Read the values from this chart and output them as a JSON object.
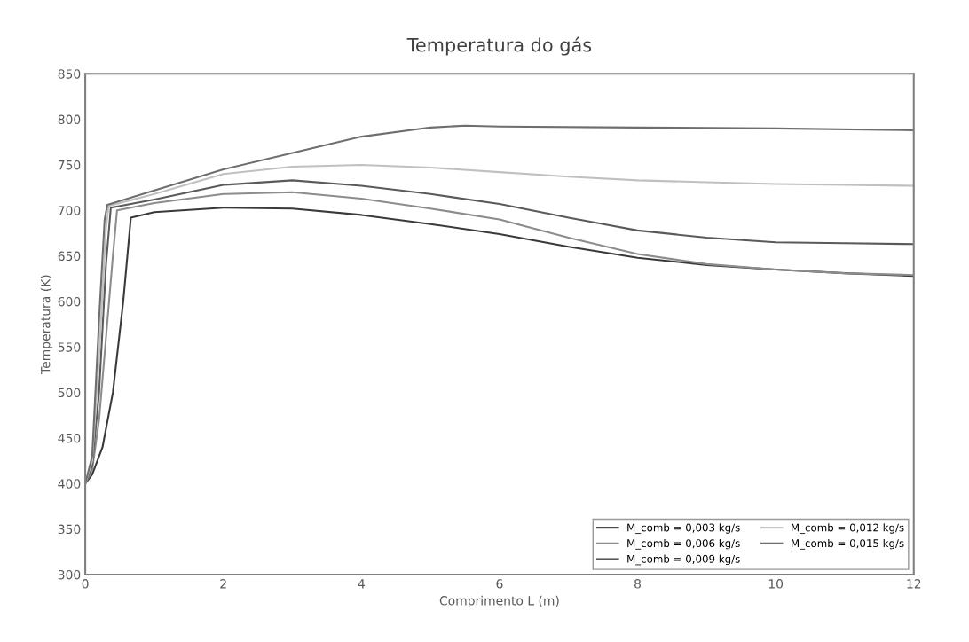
{
  "chart_data": {
    "type": "line",
    "title": "Temperatura do gás",
    "xlabel": "Comprimento L (m)",
    "ylabel": "Temperatura (K)",
    "xlim": [
      0,
      12
    ],
    "xticks": [
      0,
      2,
      4,
      6,
      8,
      10,
      12
    ],
    "ylim": [
      300,
      850
    ],
    "yticks": [
      300,
      350,
      400,
      450,
      500,
      550,
      600,
      650,
      700,
      750,
      800,
      850
    ],
    "grid": false,
    "legend": "bottom right",
    "marker": "none",
    "line_style": "solid",
    "series": [
      {
        "name": "M_comb = 0,003 kg/s",
        "color": "#3a3a3a",
        "x": [
          0,
          0.1,
          0.25,
          0.4,
          0.55,
          0.66,
          1,
          2,
          3,
          4,
          5,
          6,
          7,
          8,
          9,
          10,
          11,
          12
        ],
        "values": [
          400,
          410,
          440,
          500,
          600,
          692,
          698,
          703,
          702,
          695,
          685,
          674,
          660,
          648,
          640,
          635,
          631,
          628
        ]
      },
      {
        "name": "M_comb = 0,006 kg/s",
        "color": "#8c8c8c",
        "x": [
          0,
          0.1,
          0.2,
          0.3,
          0.4,
          0.46,
          1,
          2,
          3,
          4,
          5,
          6,
          7,
          8,
          9,
          10,
          11,
          12
        ],
        "values": [
          400,
          415,
          470,
          560,
          650,
          700,
          708,
          718,
          720,
          713,
          702,
          690,
          670,
          652,
          641,
          635,
          631,
          629
        ]
      },
      {
        "name": "M_comb = 0,009 kg/s",
        "color": "#5a5a5a",
        "x": [
          0,
          0.1,
          0.2,
          0.3,
          0.37,
          1,
          2,
          3,
          4,
          5,
          6,
          7,
          8,
          9,
          10,
          11,
          12
        ],
        "values": [
          400,
          420,
          500,
          640,
          703,
          712,
          728,
          733,
          727,
          718,
          707,
          692,
          678,
          670,
          665,
          664,
          663
        ]
      },
      {
        "name": "M_comb = 0,012 kg/s",
        "color": "#c0c0c0",
        "x": [
          0,
          0.1,
          0.2,
          0.3,
          0.34,
          1,
          2,
          3,
          4,
          5,
          6,
          7,
          8,
          9,
          10,
          11,
          12
        ],
        "values": [
          400,
          425,
          540,
          680,
          705,
          718,
          740,
          748,
          750,
          747,
          742,
          737,
          733,
          731,
          729,
          728,
          727
        ]
      },
      {
        "name": "M_comb = 0,015 kg/s",
        "color": "#6e6e6e",
        "x": [
          0,
          0.1,
          0.2,
          0.28,
          0.32,
          1,
          2,
          3,
          4,
          5,
          5.5,
          6,
          8,
          10,
          12
        ],
        "values": [
          400,
          430,
          580,
          690,
          706,
          722,
          745,
          763,
          781,
          791,
          793,
          792,
          791,
          790,
          788
        ]
      }
    ]
  }
}
